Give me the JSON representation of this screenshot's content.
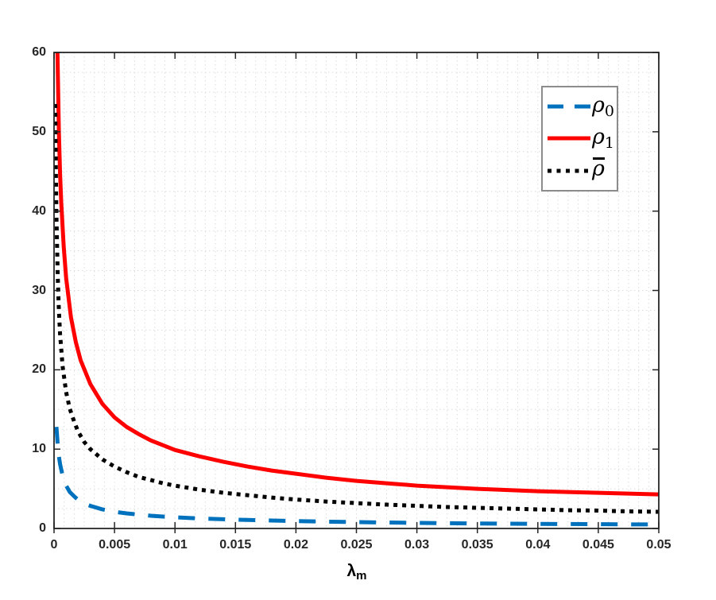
{
  "chart_data": {
    "type": "line",
    "title": "",
    "xlabel": {
      "base": "λ",
      "subscript": "m"
    },
    "ylabel": "",
    "xlim": [
      0,
      0.05
    ],
    "ylim": [
      0,
      60
    ],
    "xticks": {
      "values": [
        0,
        0.005,
        0.01,
        0.015,
        0.02,
        0.025,
        0.03,
        0.035,
        0.04,
        0.045,
        0.05
      ],
      "labels": [
        "0",
        "0.005",
        "0.01",
        "0.015",
        "0.02",
        "0.025",
        "0.03",
        "0.035",
        "0.04",
        "0.045",
        "0.05"
      ]
    },
    "yticks": {
      "values": [
        0,
        10,
        20,
        30,
        40,
        50,
        60
      ],
      "labels": [
        "0",
        "10",
        "20",
        "30",
        "40",
        "50",
        "60"
      ]
    },
    "grid": {
      "visible": true,
      "minor": true,
      "line_style": "dotted",
      "color": "#dcdcdc",
      "x_divisions_per_major": 6,
      "y_divisions_per_major": 4
    },
    "axis_color": "#262626",
    "tick_label_color": "#262626",
    "legend": {
      "position": "upper-right",
      "border_color": "#8c8c8c",
      "items": [
        {
          "label_base": "ρ",
          "label_sub": "0",
          "overbar": false
        },
        {
          "label_base": "ρ",
          "label_sub": "1",
          "overbar": false
        },
        {
          "label_base": "ρ",
          "label_sub": "",
          "overbar": true
        }
      ]
    },
    "series": [
      {
        "name": "rho_0",
        "color": "#0072BD",
        "style": "dashed",
        "points": [
          [
            0.0002,
            12.8
          ],
          [
            0.0003,
            10.6
          ],
          [
            0.0004,
            9.1
          ],
          [
            0.0005,
            8.1
          ],
          [
            0.0007,
            6.7
          ],
          [
            0.001,
            5.4
          ],
          [
            0.0013,
            4.6
          ],
          [
            0.0017,
            4.0
          ],
          [
            0.002,
            3.6
          ],
          [
            0.0025,
            3.15
          ],
          [
            0.003,
            2.85
          ],
          [
            0.004,
            2.4
          ],
          [
            0.005,
            2.1
          ],
          [
            0.006,
            1.9
          ],
          [
            0.007,
            1.75
          ],
          [
            0.008,
            1.6
          ],
          [
            0.009,
            1.5
          ],
          [
            0.01,
            1.4
          ],
          [
            0.012,
            1.27
          ],
          [
            0.014,
            1.16
          ],
          [
            0.016,
            1.07
          ],
          [
            0.018,
            1.0
          ],
          [
            0.02,
            0.93
          ],
          [
            0.0225,
            0.86
          ],
          [
            0.025,
            0.8
          ],
          [
            0.0275,
            0.75
          ],
          [
            0.03,
            0.7
          ],
          [
            0.0325,
            0.66
          ],
          [
            0.035,
            0.63
          ],
          [
            0.0375,
            0.6
          ],
          [
            0.04,
            0.58
          ],
          [
            0.0425,
            0.56
          ],
          [
            0.045,
            0.54
          ],
          [
            0.0475,
            0.52
          ],
          [
            0.05,
            0.5
          ]
        ]
      },
      {
        "name": "rho_1",
        "color": "#FF0000",
        "style": "solid",
        "points": [
          [
            0.00028,
            60
          ],
          [
            0.0004,
            50
          ],
          [
            0.0005,
            44.7
          ],
          [
            0.0006,
            41
          ],
          [
            0.0008,
            35.5
          ],
          [
            0.001,
            31.6
          ],
          [
            0.0014,
            26.6
          ],
          [
            0.0018,
            23.5
          ],
          [
            0.0022,
            21.2
          ],
          [
            0.003,
            18.2
          ],
          [
            0.004,
            15.7
          ],
          [
            0.005,
            14.0
          ],
          [
            0.006,
            12.8
          ],
          [
            0.007,
            11.9
          ],
          [
            0.008,
            11.1
          ],
          [
            0.009,
            10.5
          ],
          [
            0.01,
            9.9
          ],
          [
            0.012,
            9.1
          ],
          [
            0.014,
            8.4
          ],
          [
            0.016,
            7.8
          ],
          [
            0.018,
            7.3
          ],
          [
            0.02,
            6.9
          ],
          [
            0.0225,
            6.4
          ],
          [
            0.025,
            6.0
          ],
          [
            0.0275,
            5.7
          ],
          [
            0.03,
            5.4
          ],
          [
            0.0325,
            5.2
          ],
          [
            0.035,
            5.0
          ],
          [
            0.0375,
            4.85
          ],
          [
            0.04,
            4.7
          ],
          [
            0.0425,
            4.6
          ],
          [
            0.045,
            4.5
          ],
          [
            0.0475,
            4.4
          ],
          [
            0.05,
            4.3
          ]
        ]
      },
      {
        "name": "rho_bar",
        "color": "#000000",
        "style": "dotted",
        "points": [
          [
            0.0001,
            53.5
          ],
          [
            0.00015,
            45
          ],
          [
            0.0002,
            39.5
          ],
          [
            0.0003,
            32
          ],
          [
            0.0004,
            27.5
          ],
          [
            0.0005,
            24.5
          ],
          [
            0.0007,
            20.5
          ],
          [
            0.001,
            17.2
          ],
          [
            0.0013,
            15.1
          ],
          [
            0.0017,
            13.3
          ],
          [
            0.002,
            12.2
          ],
          [
            0.0025,
            10.9
          ],
          [
            0.003,
            10.0
          ],
          [
            0.004,
            8.7
          ],
          [
            0.005,
            7.8
          ],
          [
            0.006,
            7.1
          ],
          [
            0.007,
            6.5
          ],
          [
            0.008,
            6.1
          ],
          [
            0.009,
            5.7
          ],
          [
            0.01,
            5.4
          ],
          [
            0.012,
            4.9
          ],
          [
            0.014,
            4.5
          ],
          [
            0.016,
            4.2
          ],
          [
            0.018,
            3.9
          ],
          [
            0.02,
            3.65
          ],
          [
            0.0225,
            3.4
          ],
          [
            0.025,
            3.2
          ],
          [
            0.0275,
            3.0
          ],
          [
            0.03,
            2.85
          ],
          [
            0.0325,
            2.7
          ],
          [
            0.035,
            2.6
          ],
          [
            0.0375,
            2.5
          ],
          [
            0.04,
            2.4
          ],
          [
            0.0425,
            2.3
          ],
          [
            0.045,
            2.25
          ],
          [
            0.0475,
            2.15
          ],
          [
            0.05,
            2.1
          ]
        ]
      }
    ]
  }
}
